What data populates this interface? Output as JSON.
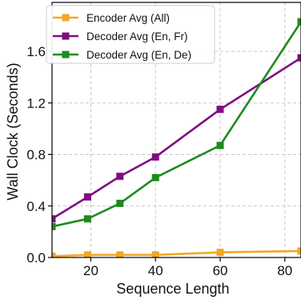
{
  "chart_data": {
    "type": "line",
    "xlabel": "Sequence Length",
    "ylabel": "Wall Clock (Seconds)",
    "xlim": [
      8,
      85
    ],
    "ylim": [
      0,
      1.98
    ],
    "xticks": [
      20,
      40,
      60,
      80
    ],
    "xtick_labels": [
      "20",
      "40",
      "60",
      "80"
    ],
    "yticks": [
      0,
      0.4,
      0.8,
      1.2,
      1.6
    ],
    "ytick_labels": [
      "0.0",
      "0.4",
      "0.8",
      "1.2",
      "1.6"
    ],
    "grid": true,
    "legend_position": "top-left",
    "series": [
      {
        "name": "Encoder Avg (All)",
        "color": "#f5a623",
        "marker": "square",
        "x": [
          8,
          19,
          29,
          40,
          60,
          85
        ],
        "y": [
          0.01,
          0.02,
          0.02,
          0.02,
          0.04,
          0.05
        ]
      },
      {
        "name": "Decoder Avg (En, Fr)",
        "color": "#800d80",
        "marker": "square",
        "x": [
          8,
          19,
          29,
          40,
          60,
          85
        ],
        "y": [
          0.3,
          0.47,
          0.63,
          0.78,
          1.15,
          1.55
        ]
      },
      {
        "name": "Decoder Avg (En, De)",
        "color": "#1e8b1e",
        "marker": "square",
        "x": [
          8,
          19,
          29,
          40,
          60,
          85
        ],
        "y": [
          0.24,
          0.3,
          0.42,
          0.62,
          0.87,
          1.83
        ]
      }
    ]
  }
}
